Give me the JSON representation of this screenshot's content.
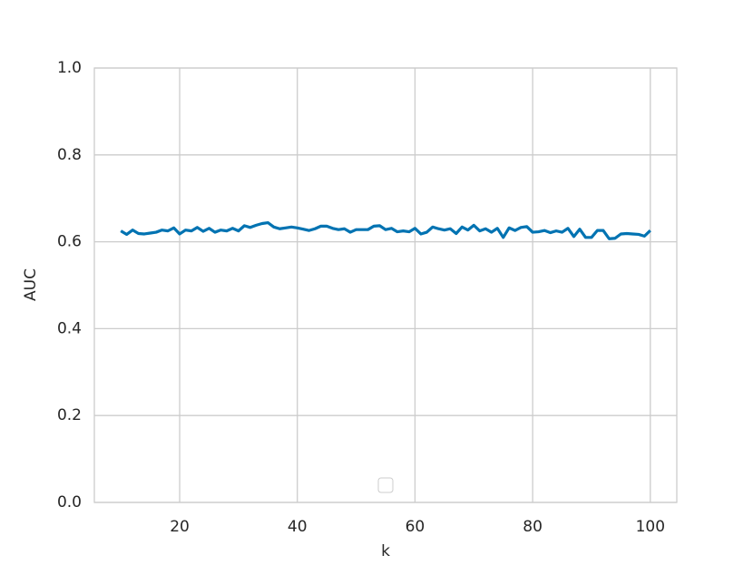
{
  "chart_data": {
    "type": "line",
    "x_label": "k",
    "y_label": "AUC",
    "x": [
      10,
      11,
      12,
      13,
      14,
      15,
      16,
      17,
      18,
      19,
      20,
      21,
      22,
      23,
      24,
      25,
      26,
      27,
      28,
      29,
      30,
      31,
      32,
      33,
      34,
      35,
      36,
      37,
      38,
      39,
      40,
      41,
      42,
      43,
      44,
      45,
      46,
      47,
      48,
      49,
      50,
      51,
      52,
      53,
      54,
      55,
      56,
      57,
      58,
      59,
      60,
      61,
      62,
      63,
      64,
      65,
      66,
      67,
      68,
      69,
      70,
      71,
      72,
      73,
      74,
      75,
      76,
      77,
      78,
      79,
      80,
      81,
      82,
      83,
      84,
      85,
      86,
      87,
      88,
      89,
      90,
      91,
      92,
      93,
      94,
      95,
      96,
      97,
      98,
      99,
      100
    ],
    "series": [
      {
        "color": "#0173b2",
        "values": [
          0.625,
          0.617,
          0.627,
          0.619,
          0.618,
          0.62,
          0.622,
          0.627,
          0.625,
          0.632,
          0.618,
          0.627,
          0.625,
          0.633,
          0.624,
          0.631,
          0.622,
          0.627,
          0.625,
          0.631,
          0.625,
          0.637,
          0.633,
          0.638,
          0.642,
          0.644,
          0.634,
          0.63,
          0.632,
          0.634,
          0.632,
          0.629,
          0.626,
          0.63,
          0.636,
          0.636,
          0.631,
          0.628,
          0.63,
          0.622,
          0.628,
          0.628,
          0.628,
          0.636,
          0.637,
          0.628,
          0.631,
          0.623,
          0.625,
          0.623,
          0.631,
          0.618,
          0.622,
          0.634,
          0.63,
          0.627,
          0.63,
          0.619,
          0.634,
          0.627,
          0.638,
          0.625,
          0.63,
          0.622,
          0.631,
          0.61,
          0.632,
          0.626,
          0.633,
          0.635,
          0.622,
          0.623,
          0.626,
          0.621,
          0.625,
          0.622,
          0.631,
          0.612,
          0.629,
          0.61,
          0.61,
          0.626,
          0.626,
          0.607,
          0.608,
          0.618,
          0.619,
          0.618,
          0.617,
          0.613,
          0.626
        ]
      }
    ],
    "xlim": [
      5.5,
      104.5
    ],
    "ylim": [
      0,
      1
    ],
    "xticks": [
      20,
      40,
      60,
      80,
      100
    ],
    "yticks": [
      {
        "value": 0,
        "label": "0.0"
      },
      {
        "value": 0.2,
        "label": "0.2"
      },
      {
        "value": 0.4,
        "label": "0.4"
      },
      {
        "value": 0.6,
        "label": "0.6"
      },
      {
        "value": 0.8,
        "label": "0.8"
      },
      {
        "value": 1,
        "label": "1.0"
      }
    ],
    "grid": true
  }
}
